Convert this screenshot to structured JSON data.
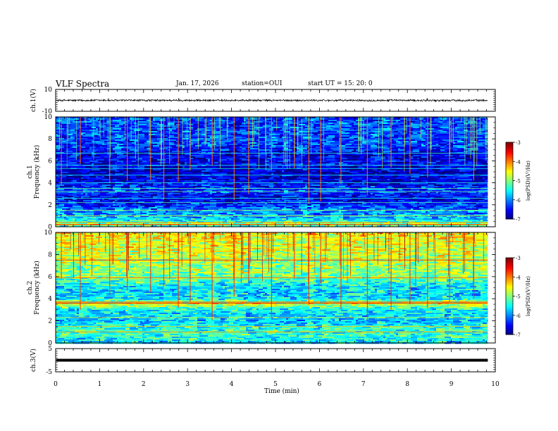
{
  "header": {
    "title": "VLF Spectra",
    "date": "Jan. 17, 2026",
    "station": "station=OUI",
    "start": "start  UT =   15: 20: 0"
  },
  "colors": {
    "ink": "#000000",
    "line_green": "#40ff40",
    "line_yellow": "#e0ff30"
  },
  "colorbar": {
    "label": "log(PSD)(V²/Hz)",
    "ticks": [
      "-3",
      "-4",
      "-5",
      "-6",
      "-7"
    ],
    "tick_values": [
      -3,
      -4,
      -5,
      -6,
      -7
    ],
    "range": [
      -7,
      -3
    ],
    "colormap": "jet"
  },
  "chart_data": [
    {
      "type": "line",
      "id": "ch1-waveform",
      "title": "",
      "xlabel": "",
      "ylabel": "ch.1(V)",
      "xlim": [
        0,
        10
      ],
      "ylim": [
        -10,
        10
      ],
      "ytick_labels": [
        "10",
        "-10"
      ],
      "ytick_values": [
        10,
        -10
      ],
      "note": "waveform of ~0 V with noise amplitude about ±1 V and sparse spikes up to ~+2 V",
      "baseline": 0,
      "noise_amplitude": 0.8,
      "spikes": [
        {
          "x": 1.2,
          "y": 1.8
        },
        {
          "x": 2.8,
          "y": 2.0
        },
        {
          "x": 8.45,
          "y": 2.1
        },
        {
          "x": 8.65,
          "y": -1.6
        },
        {
          "x": 4.4,
          "y": 1.3
        }
      ],
      "data_end": 9.83
    },
    {
      "type": "heatmap",
      "id": "ch1-spectrogram",
      "xlabel": "",
      "ylabel": "ch.1\nFrequency (kHz)",
      "ylabel_lines": [
        "ch.1",
        "Frequency (kHz)"
      ],
      "xlim": [
        0,
        10
      ],
      "ylim": [
        0,
        10
      ],
      "ytick_labels": [
        "10",
        "8",
        "6",
        "4",
        "2",
        "0"
      ],
      "ytick_values": [
        10,
        8,
        6,
        4,
        2,
        0
      ],
      "data_end": 9.83,
      "zlim": [
        -7,
        -3
      ],
      "frequency_profile": [
        {
          "f": 0.0,
          "v": -5.6
        },
        {
          "f": 0.2,
          "v": -4.6
        },
        {
          "f": 0.4,
          "v": -5.2
        },
        {
          "f": 0.8,
          "v": -5.7
        },
        {
          "f": 1.5,
          "v": -6.0
        },
        {
          "f": 2.0,
          "v": -6.3
        },
        {
          "f": 2.6,
          "v": -6.6
        },
        {
          "f": 3.3,
          "v": -6.2
        },
        {
          "f": 4.0,
          "v": -6.6
        },
        {
          "f": 5.0,
          "v": -6.7
        },
        {
          "f": 6.0,
          "v": -6.5
        },
        {
          "f": 6.6,
          "v": -6.6
        },
        {
          "f": 7.0,
          "v": -6.3
        },
        {
          "f": 8.0,
          "v": -6.2
        },
        {
          "f": 10.0,
          "v": -6.2
        }
      ],
      "narrowband_lines_khz": [
        0.2,
        0.4,
        1.0,
        1.5,
        2.2,
        2.6,
        3.2,
        3.5,
        4.0,
        4.7,
        5.3,
        5.6,
        6.7
      ],
      "impulsive_events_min": [
        0.12,
        0.55,
        1.22,
        1.62,
        2.15,
        2.45,
        2.78,
        3.05,
        3.55,
        4.05,
        4.38,
        4.9,
        5.42,
        5.75,
        6.02,
        6.48,
        7.08,
        7.62,
        8.05,
        8.45,
        8.95,
        9.5
      ]
    },
    {
      "type": "heatmap",
      "id": "ch2-spectrogram",
      "xlabel": "",
      "ylabel": "ch.2\nFrequency (kHz)",
      "ylabel_lines": [
        "ch.2",
        "Frequency (kHz)"
      ],
      "xlim": [
        0,
        10
      ],
      "ylim": [
        0,
        10
      ],
      "ytick_labels": [
        "10",
        "8",
        "6",
        "4",
        "2",
        "0"
      ],
      "ytick_values": [
        10,
        8,
        6,
        4,
        2,
        0
      ],
      "data_end": 9.83,
      "zlim": [
        -7,
        -3
      ],
      "frequency_profile": [
        {
          "f": 0.0,
          "v": -5.6
        },
        {
          "f": 1.0,
          "v": -5.2
        },
        {
          "f": 2.0,
          "v": -5.7
        },
        {
          "f": 3.0,
          "v": -5.5
        },
        {
          "f": 3.6,
          "v": -4.5
        },
        {
          "f": 4.0,
          "v": -5.6
        },
        {
          "f": 5.0,
          "v": -5.6
        },
        {
          "f": 6.0,
          "v": -5.0
        },
        {
          "f": 7.0,
          "v": -4.9
        },
        {
          "f": 8.0,
          "v": -4.7
        },
        {
          "f": 9.0,
          "v": -4.6
        },
        {
          "f": 10.0,
          "v": -4.5
        }
      ],
      "narrowband_lines_khz": [
        1.0,
        1.5,
        2.3,
        3.6,
        3.7,
        5.9,
        7.5
      ],
      "impulsive_events_min": [
        0.12,
        0.55,
        1.22,
        1.62,
        2.15,
        2.45,
        2.78,
        3.05,
        3.55,
        4.05,
        4.38,
        4.9,
        5.42,
        5.75,
        6.02,
        6.48,
        7.08,
        7.62,
        8.05,
        8.45,
        8.95,
        9.5
      ]
    },
    {
      "type": "line",
      "id": "ch3-waveform",
      "xlabel": "Time (min)",
      "ylabel": "ch.3(V)",
      "xlim": [
        0,
        10
      ],
      "ylim": [
        -5,
        5
      ],
      "ytick_labels": [
        "5",
        "-5"
      ],
      "ytick_values": [
        5,
        -5
      ],
      "baseline": 0,
      "note": "flat thick trace at about 0 V",
      "data_end": 9.83,
      "xtick_labels": [
        "0",
        "1",
        "2",
        "3",
        "4",
        "5",
        "6",
        "7",
        "8",
        "9",
        "10"
      ],
      "xtick_values": [
        0,
        1,
        2,
        3,
        4,
        5,
        6,
        7,
        8,
        9,
        10
      ]
    }
  ]
}
